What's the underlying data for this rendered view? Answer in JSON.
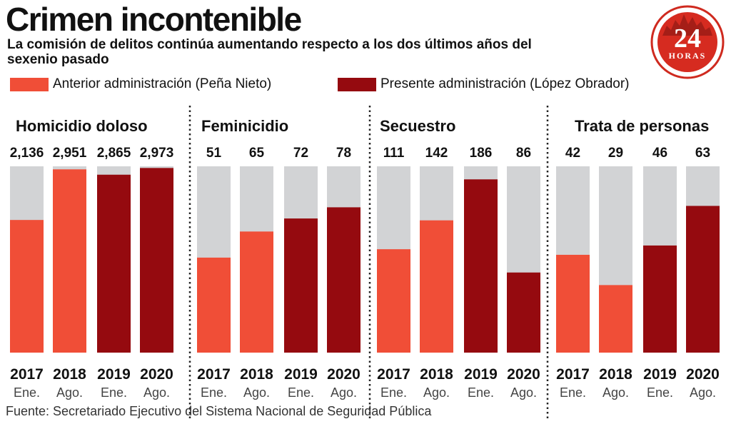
{
  "title": "Crimen incontenible",
  "subtitle": "La comisión de delitos continúa aumentando respecto a los dos últimos años del sexenio pasado",
  "legend": {
    "previous": {
      "label": "Anterior administración (Peña Nieto)",
      "color": "#f04e37"
    },
    "current": {
      "label": "Presente administración (López Obrador)",
      "color": "#950a0f"
    }
  },
  "logo": {
    "number": "24",
    "word": "HORAS"
  },
  "source": "Fuente: Secretariado Ejecutivo del Sistema Nacional de Seguridad Pública",
  "colors": {
    "background_bar": "#d2d3d5",
    "previous": "#f04e37",
    "current": "#950a0f"
  },
  "chart_data": {
    "type": "bar",
    "title": "Crimen incontenible",
    "groups": [
      {
        "name": "Homicidio doloso",
        "max": 3000,
        "bars": [
          {
            "year": "2017",
            "month": "Ene.",
            "label": "2,136",
            "value": 2136,
            "admin": "previous"
          },
          {
            "year": "2018",
            "month": "Ago.",
            "label": "2,951",
            "value": 2951,
            "admin": "previous"
          },
          {
            "year": "2019",
            "month": "Ene.",
            "label": "2,865",
            "value": 2865,
            "admin": "current"
          },
          {
            "year": "2020",
            "month": "Ago.",
            "label": "2,973",
            "value": 2973,
            "admin": "current"
          }
        ]
      },
      {
        "name": "Feminicidio",
        "max": 100,
        "bars": [
          {
            "year": "2017",
            "month": "Ene.",
            "label": "51",
            "value": 51,
            "admin": "previous"
          },
          {
            "year": "2018",
            "month": "Ago.",
            "label": "65",
            "value": 65,
            "admin": "previous"
          },
          {
            "year": "2019",
            "month": "Ene.",
            "label": "72",
            "value": 72,
            "admin": "current"
          },
          {
            "year": "2020",
            "month": "Ago.",
            "label": "78",
            "value": 78,
            "admin": "current"
          }
        ]
      },
      {
        "name": "Secuestro",
        "max": 200,
        "bars": [
          {
            "year": "2017",
            "month": "Ene.",
            "label": "111",
            "value": 111,
            "admin": "previous"
          },
          {
            "year": "2018",
            "month": "Ago.",
            "label": "142",
            "value": 142,
            "admin": "previous"
          },
          {
            "year": "2019",
            "month": "Ene.",
            "label": "186",
            "value": 186,
            "admin": "current"
          },
          {
            "year": "2020",
            "month": "Ago.",
            "label": "86",
            "value": 86,
            "admin": "current"
          }
        ]
      },
      {
        "name": "Trata de personas",
        "max": 80,
        "bars": [
          {
            "year": "2017",
            "month": "Ene.",
            "label": "42",
            "value": 42,
            "admin": "previous"
          },
          {
            "year": "2018",
            "month": "Ago.",
            "label": "29",
            "value": 29,
            "admin": "previous"
          },
          {
            "year": "2019",
            "month": "Ene.",
            "label": "46",
            "value": 46,
            "admin": "current"
          },
          {
            "year": "2020",
            "month": "Ago.",
            "label": "63",
            "value": 63,
            "admin": "current"
          }
        ]
      }
    ]
  }
}
